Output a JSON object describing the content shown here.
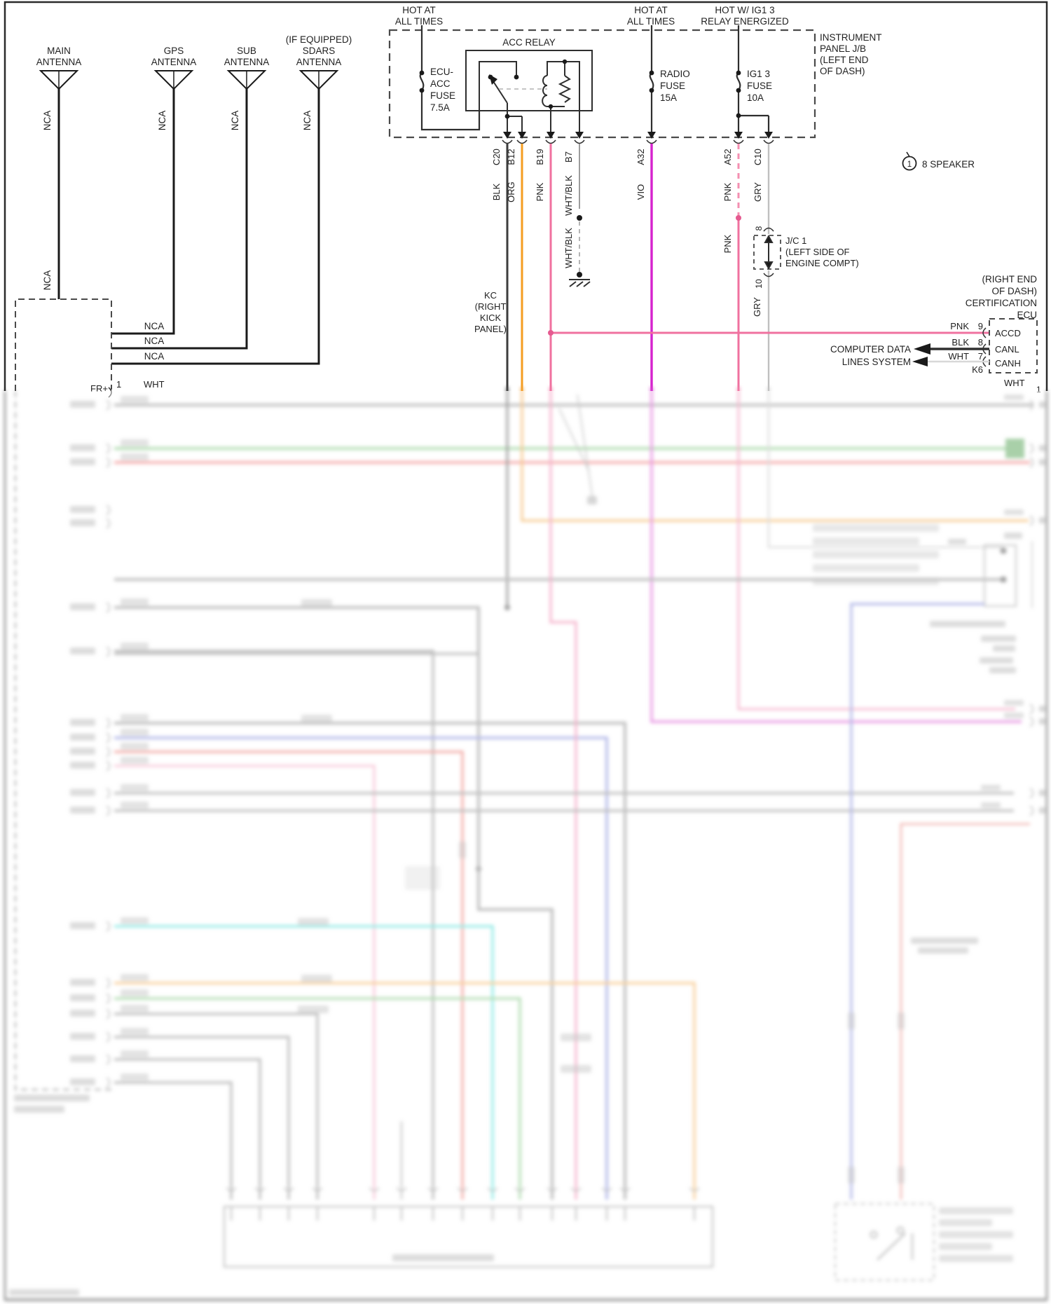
{
  "antennas": {
    "items": [
      {
        "lines": [
          "MAIN",
          "ANTENNA"
        ]
      },
      {
        "lines": [
          "GPS",
          "ANTENNA"
        ]
      },
      {
        "lines": [
          "SUB",
          "ANTENNA"
        ]
      },
      {
        "lines": [
          "(IF EQUIPPED)",
          "SDARS",
          "ANTENNA"
        ]
      }
    ],
    "nca": "NCA"
  },
  "junction_block": {
    "hot_at_all_times_1": [
      "HOT AT",
      "ALL TIMES"
    ],
    "hot_at_all_times_2": [
      "HOT AT",
      "ALL TIMES"
    ],
    "hot_ig13": [
      "HOT W/ IG1 3",
      "RELAY ENERGIZED"
    ],
    "panel_label": [
      "INSTRUMENT",
      "PANEL J/B",
      "(LEFT END",
      "OF DASH)"
    ],
    "acc_relay": "ACC RELAY",
    "fuse_ecu_acc": [
      "ECU-",
      "ACC",
      "FUSE",
      "7.5A"
    ],
    "fuse_radio": [
      "RADIO",
      "FUSE",
      "15A"
    ],
    "fuse_ig13": [
      "IG1 3",
      "FUSE",
      "10A"
    ]
  },
  "connector_pins": [
    "C20",
    "B12",
    "B19",
    "B7",
    "A32",
    "A52",
    "C10"
  ],
  "wire_labels": {
    "blk": "BLK",
    "org": "ORG",
    "pnk": "PNK",
    "whtblk": "WHT/BLK",
    "vio": "VIO",
    "pnk_a52_top": "PNK",
    "gry": "GRY",
    "whtblk2": "WHT/BLK",
    "pnk_a52_bottom": "PNK",
    "gry_jc_num_top": "8",
    "gry_jc_num_bottom": "10",
    "gry_below_jc": "GRY"
  },
  "kc_ground": [
    "KC",
    "(RIGHT",
    "KICK",
    "PANEL)"
  ],
  "jc1_label": [
    "J/C 1",
    "(LEFT SIDE OF",
    "ENGINE COMPT)"
  ],
  "speaker_note": {
    "marker": "1",
    "text": "8 SPEAKER"
  },
  "certification_ecu": {
    "title": [
      "(RIGHT END",
      "OF DASH)",
      "CERTIFICATION",
      "ECU"
    ],
    "pin1": {
      "color": "PNK",
      "num": "9",
      "name": "ACCD"
    },
    "pin2": {
      "color": "BLK",
      "num": "8",
      "name": "CANL"
    },
    "pin3": {
      "color": "WHT",
      "num": "7",
      "name": "CANH"
    },
    "k6": "K6",
    "data_lines": [
      "COMPUTER DATA",
      "LINES SYSTEM"
    ],
    "wht": "WHT",
    "pin_one": "1"
  },
  "radio_connector": {
    "fr_plus": "FR+",
    "pin_one": "1",
    "wht": "WHT"
  },
  "colors": {
    "black_wire": "#3d3d3d",
    "orange_wire": "#f59d20",
    "pink_wire": "#f0719f",
    "pink_dashed_wire": "#f48fb1",
    "violet_wire": "#d622ce",
    "gray_wire": "#c0c0c0",
    "white_wire": "#a8a8a8",
    "green_wire": "#7cc47c",
    "red_wire": "#ec6464",
    "cyan_wire": "#49dcd4",
    "blue_wire": "#8089d8",
    "green_block": "#4c9e4c"
  }
}
